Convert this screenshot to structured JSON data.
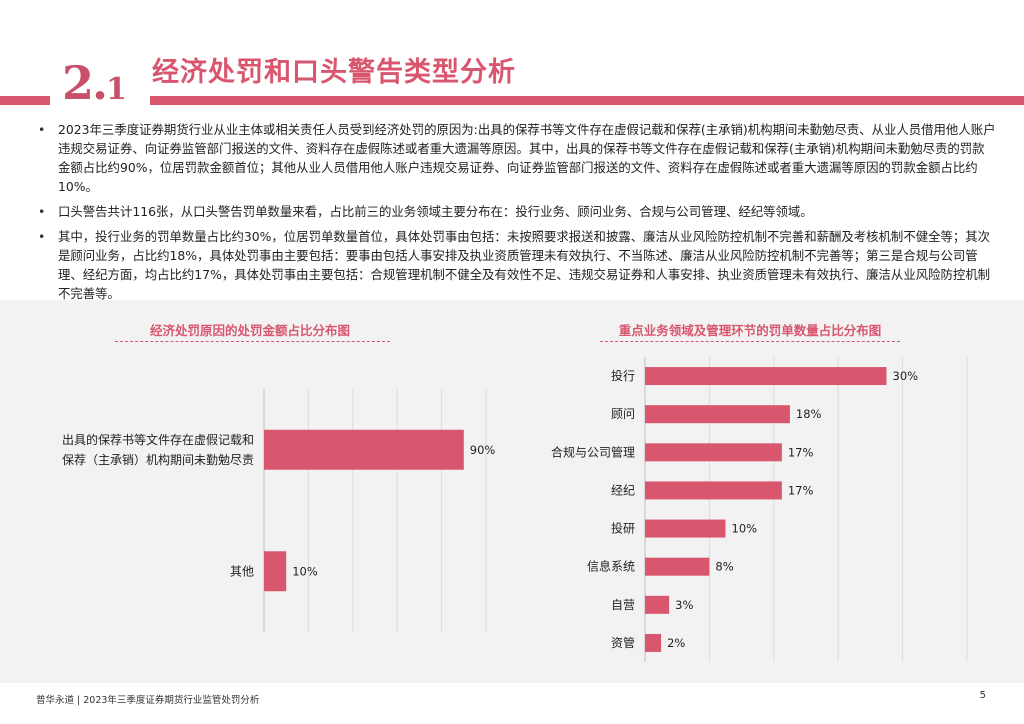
{
  "header": {
    "section_big": "2.",
    "section_small": "1",
    "title": "经济处罚和口头警告类型分析"
  },
  "bullets": [
    "2023年三季度证券期货行业从业主体或相关责任人员受到经济处罚的原因为:出具的保荐书等文件存在虚假记载和保荐(主承销)机构期间未勤勉尽责、从业人员借用他人账户违规交易证券、向证券监管部门报送的文件、资料存在虚假陈述或者重大遗漏等原因。其中，出具的保荐书等文件存在虚假记载和保荐(主承销)机构期间未勤勉尽责的罚款金额占比约90%，位居罚款金额首位；其他从业人员借用他人账户违规交易证券、向证券监管部门报送的文件、资料存在虚假陈述或者重大遗漏等原因的罚款金额占比约10%。",
    "口头警告共计116张，从口头警告罚单数量来看，占比前三的业务领域主要分布在：投行业务、顾问业务、合规与公司管理、经纪等领域。",
    "其中，投行业务的罚单数量占比约30%，位居罚单数量首位，具体处罚事由包括：未按照要求报送和披露、廉洁从业风险防控机制不完善和薪酬及考核机制不健全等；其次是顾问业务，占比约18%，具体处罚事由主要包括：要事由包括人事安排及执业资质管理未有效执行、不当陈述、廉洁从业风险防控机制不完善等；第三是合规与公司管理、经纪方面，均占比约17%，具体处罚事由主要包括：合规管理机制不健全及有效性不足、违规交易证券和人事安排、执业资质管理未有效执行、廉洁从业风险防控机制不完善等。"
  ],
  "chart_data": [
    {
      "type": "bar",
      "orientation": "horizontal",
      "title": "经济处罚原因的处罚金额占比分布图",
      "categories": [
        "出具的保荐书等文件存在虚假记载和\n保荐（主承销）机构期间未勤勉尽责",
        "其他"
      ],
      "values": [
        90,
        10
      ],
      "value_labels": [
        "90%",
        "10%"
      ],
      "xlim": [
        0,
        100
      ],
      "grid": true
    },
    {
      "type": "bar",
      "orientation": "horizontal",
      "title": "重点业务领域及管理环节的罚单数量占比分布图",
      "categories": [
        "投行",
        "顾问",
        "合规与公司管理",
        "经纪",
        "投研",
        "信息系统",
        "自营",
        "资管"
      ],
      "values": [
        30,
        18,
        17,
        17,
        10,
        8,
        3,
        2
      ],
      "value_labels": [
        "30%",
        "18%",
        "17%",
        "17%",
        "10%",
        "8%",
        "3%",
        "2%"
      ],
      "xlim": [
        0,
        40
      ],
      "grid": true
    }
  ],
  "colors": {
    "accent": "#d9566f",
    "bar": "#d9566f",
    "panel": "#f2f2f2"
  },
  "footer": {
    "text": "普华永道 | 2023年三季度证券期货行业监管处罚分析",
    "page": "5"
  }
}
